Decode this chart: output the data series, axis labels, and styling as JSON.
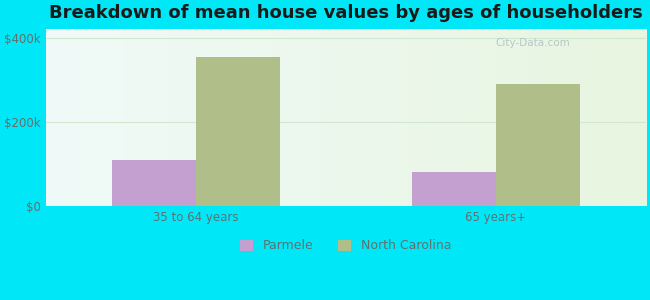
{
  "title": "Breakdown of mean house values by ages of householders",
  "categories": [
    "35 to 64 years",
    "65 years+"
  ],
  "parmele_values": [
    110000,
    80000
  ],
  "nc_values": [
    355000,
    290000
  ],
  "parmele_color": "#c4a0d0",
  "nc_color": "#b0be8a",
  "background_color": "#00e8f8",
  "ylim": [
    0,
    420000
  ],
  "ytick_labels": [
    "$0",
    "$200k",
    "$400k"
  ],
  "ytick_values": [
    0,
    200000,
    400000
  ],
  "legend_labels": [
    "Parmele",
    "North Carolina"
  ],
  "bar_width": 0.28,
  "title_fontsize": 13,
  "tick_fontsize": 8.5,
  "legend_fontsize": 9,
  "watermark": "City-Data.com"
}
